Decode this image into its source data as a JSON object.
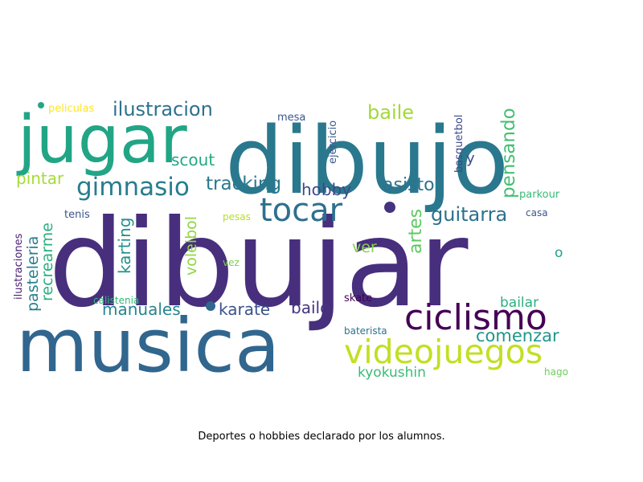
{
  "caption": "Deportes o hobbies declarado por los alumnos.",
  "words": [
    {
      "text": "dibujar",
      "color": "#472f7d"
    },
    {
      "text": "dibujo",
      "color": "#2a788e"
    },
    {
      "text": "musica",
      "color": "#31668e"
    },
    {
      "text": "jugar",
      "color": "#21a585"
    },
    {
      "text": "videojuegos",
      "color": "#c2df23"
    },
    {
      "text": "ciclismo",
      "color": "#440154"
    },
    {
      "text": "tocar",
      "color": "#2d708e"
    },
    {
      "text": "gimnasio",
      "color": "#287d8e"
    },
    {
      "text": "ilustracion",
      "color": "#2d718e"
    },
    {
      "text": "tracking",
      "color": "#2a788e"
    },
    {
      "text": "baile",
      "color": "#a2da37"
    },
    {
      "text": "pensando",
      "color": "#43bf71"
    },
    {
      "text": "asisto",
      "color": "#2c728e"
    },
    {
      "text": "hobby",
      "color": "#3e4989"
    },
    {
      "text": "scout",
      "color": "#22a884"
    },
    {
      "text": "pintar",
      "color": "#a5db36"
    },
    {
      "text": "guitarra",
      "color": "#2c718e"
    },
    {
      "text": "artes",
      "color": "#5ec962"
    },
    {
      "text": "karting",
      "color": "#21918c"
    },
    {
      "text": "voleibol",
      "color": "#90d743"
    },
    {
      "text": "recrearme",
      "color": "#2ab07f"
    },
    {
      "text": "pasteleria",
      "color": "#27808e"
    },
    {
      "text": "manuales",
      "color": "#25858e"
    },
    {
      "text": "karate",
      "color": "#3b528b"
    },
    {
      "text": "bailo",
      "color": "#46337f"
    },
    {
      "text": "bailar",
      "color": "#2ab07f"
    },
    {
      "text": "comenzar",
      "color": "#1f968b"
    },
    {
      "text": "kyokushin",
      "color": "#3bbb75"
    },
    {
      "text": "ver",
      "color": "#84d44b"
    },
    {
      "text": "y",
      "color": "#3e4c8a"
    },
    {
      "text": "o",
      "color": "#1fa287"
    },
    {
      "text": "ejercicio",
      "color": "#38588c"
    },
    {
      "text": "basquetbol",
      "color": "#3e4989"
    },
    {
      "text": "mesa",
      "color": "#39568c"
    },
    {
      "text": "peliculas",
      "color": "#fde725"
    },
    {
      "text": "parkour",
      "color": "#3bbb75"
    },
    {
      "text": "casa",
      "color": "#3a548c"
    },
    {
      "text": "tenis",
      "color": "#3b528b"
    },
    {
      "text": "pesas",
      "color": "#b5de2b"
    },
    {
      "text": "vez",
      "color": "#7ad151"
    },
    {
      "text": "calistenia",
      "color": "#35b779"
    },
    {
      "text": "skate",
      "color": "#440154"
    },
    {
      "text": "baterista",
      "color": "#2c728e"
    },
    {
      "text": "hago",
      "color": "#6ece58"
    },
    {
      "text": "ilustraciones",
      "color": "#482173"
    }
  ]
}
